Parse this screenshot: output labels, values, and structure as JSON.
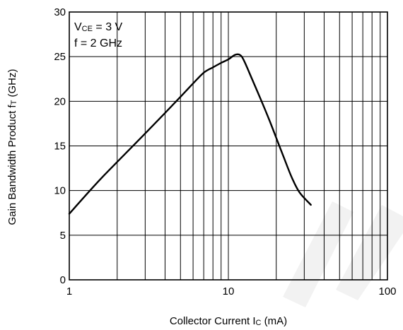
{
  "chart_data": {
    "type": "line",
    "title": "",
    "xlabel": {
      "text": "Collector Current  I",
      "sub": "C",
      "unit": " (mA)"
    },
    "ylabel": {
      "text": "Gain Bandwidth Product  f",
      "sub": "T",
      "unit": " (GHz)"
    },
    "xscale": "log",
    "xlim": [
      1,
      100
    ],
    "ylim": [
      0,
      30
    ],
    "x_ticks": [
      "1",
      "10",
      "100"
    ],
    "y_ticks": [
      "0",
      "5",
      "10",
      "15",
      "20",
      "25",
      "30"
    ],
    "grid": true,
    "conditions": {
      "line1": {
        "prefix": "V",
        "sub": "CE",
        "suffix": " = 3 V"
      },
      "line2": "f = 2 GHz"
    },
    "series": [
      {
        "x": [
          1.0,
          1.5,
          2.0,
          3.0,
          4.0,
          5.0,
          6.0,
          7.0,
          8.0,
          9.0,
          10.0,
          11.0,
          11.8,
          12.5,
          14.0,
          16.0,
          18.0,
          20.0,
          22.0,
          25.0,
          28.0,
          33.0
        ],
        "y": [
          7.4,
          10.9,
          13.2,
          16.4,
          18.7,
          20.5,
          22.0,
          23.2,
          23.8,
          24.3,
          24.7,
          25.2,
          25.2,
          24.6,
          22.6,
          20.2,
          18.0,
          15.9,
          14.0,
          11.5,
          9.8,
          8.4
        ]
      }
    ],
    "colors": {
      "line": "#000000",
      "watermark": "#f2f2f2"
    }
  }
}
